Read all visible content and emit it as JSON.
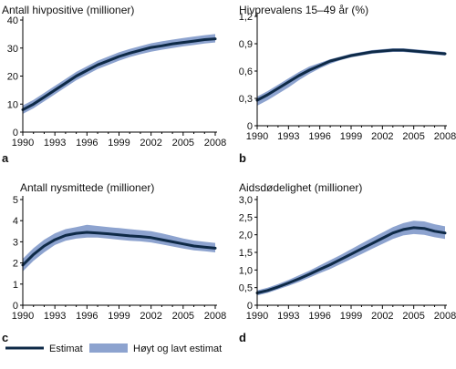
{
  "chart_data": [
    {
      "type": "line",
      "letter": "a",
      "title": "Antall hivpositive (millioner)",
      "x": [
        1990,
        1991,
        1992,
        1993,
        1994,
        1995,
        1996,
        1997,
        1998,
        1999,
        2000,
        2001,
        2002,
        2003,
        2004,
        2005,
        2006,
        2007,
        2008
      ],
      "x_ticks": [
        1990,
        1993,
        1996,
        1999,
        2002,
        2005,
        2008
      ],
      "ylim": [
        0,
        40
      ],
      "y_ticks": [
        "0",
        "10",
        "20",
        "30",
        "40"
      ],
      "y_tick_values": [
        0,
        10,
        20,
        30,
        40
      ],
      "series": [
        {
          "name": "Estimat",
          "values": [
            8,
            10,
            12.5,
            15,
            17.5,
            20,
            22,
            24,
            25.5,
            27,
            28.2,
            29.2,
            30.2,
            30.8,
            31.5,
            32,
            32.5,
            33,
            33.3
          ]
        },
        {
          "name": "Høyt og lavt estimat",
          "role": "band",
          "low": [
            6.5,
            8.5,
            11,
            13.5,
            16,
            18.5,
            20.5,
            22.5,
            24,
            25.5,
            26.8,
            27.8,
            28.7,
            29.4,
            30,
            30.6,
            31.1,
            31.6,
            32
          ],
          "high": [
            9.5,
            11.5,
            14,
            16.5,
            19,
            21.5,
            23.5,
            25.5,
            27,
            28.5,
            29.7,
            30.7,
            31.7,
            32.4,
            33,
            33.6,
            34.1,
            34.6,
            35
          ]
        }
      ]
    },
    {
      "type": "line",
      "letter": "b",
      "title": "Hivprevalens 15–49 år (%)",
      "x": [
        1990,
        1991,
        1992,
        1993,
        1994,
        1995,
        1996,
        1997,
        1998,
        1999,
        2000,
        2001,
        2002,
        2003,
        2004,
        2005,
        2006,
        2007,
        2008
      ],
      "x_ticks": [
        1990,
        1993,
        1996,
        1999,
        2002,
        2005,
        2008
      ],
      "ylim": [
        0,
        1.2
      ],
      "y_ticks": [
        "0",
        "0,3",
        "0,6",
        "0,9",
        "1,2"
      ],
      "y_tick_values": [
        0,
        0.3,
        0.6,
        0.9,
        1.2
      ],
      "series": [
        {
          "name": "Estimat",
          "values": [
            0.28,
            0.34,
            0.41,
            0.48,
            0.55,
            0.61,
            0.66,
            0.71,
            0.74,
            0.77,
            0.79,
            0.81,
            0.82,
            0.83,
            0.83,
            0.82,
            0.81,
            0.8,
            0.79
          ]
        },
        {
          "name": "Høyt og lavt estimat",
          "role": "band",
          "low": [
            0.22,
            0.28,
            0.35,
            0.42,
            0.5,
            0.57,
            0.63,
            0.68,
            0.72,
            0.75,
            0.77,
            0.79,
            0.8,
            0.81,
            0.81,
            0.8,
            0.79,
            0.78,
            0.77
          ],
          "high": [
            0.32,
            0.38,
            0.45,
            0.52,
            0.59,
            0.65,
            0.69,
            0.73,
            0.76,
            0.79,
            0.81,
            0.83,
            0.84,
            0.85,
            0.85,
            0.84,
            0.83,
            0.82,
            0.81
          ]
        }
      ]
    },
    {
      "type": "line",
      "letter": "c",
      "title": "Antall nysmittede (millioner)",
      "x": [
        1990,
        1991,
        1992,
        1993,
        1994,
        1995,
        1996,
        1997,
        1998,
        1999,
        2000,
        2001,
        2002,
        2003,
        2004,
        2005,
        2006,
        2007,
        2008
      ],
      "x_ticks": [
        1990,
        1993,
        1996,
        1999,
        2002,
        2005,
        2008
      ],
      "ylim": [
        0,
        5
      ],
      "y_ticks": [
        "0",
        "1",
        "2",
        "3",
        "4",
        "5"
      ],
      "y_tick_values": [
        0,
        1,
        2,
        3,
        4,
        5
      ],
      "series": [
        {
          "name": "Estimat",
          "values": [
            1.9,
            2.4,
            2.8,
            3.1,
            3.3,
            3.4,
            3.45,
            3.42,
            3.38,
            3.33,
            3.28,
            3.25,
            3.2,
            3.1,
            3.0,
            2.9,
            2.8,
            2.75,
            2.7
          ]
        },
        {
          "name": "Høyt og lavt estimat",
          "role": "band",
          "low": [
            1.6,
            2.1,
            2.5,
            2.85,
            3.05,
            3.15,
            3.2,
            3.2,
            3.15,
            3.1,
            3.05,
            3.02,
            2.97,
            2.88,
            2.78,
            2.68,
            2.6,
            2.55,
            2.5
          ],
          "high": [
            2.2,
            2.7,
            3.1,
            3.4,
            3.6,
            3.7,
            3.8,
            3.75,
            3.7,
            3.65,
            3.6,
            3.55,
            3.5,
            3.4,
            3.28,
            3.16,
            3.06,
            3.0,
            2.95
          ]
        }
      ]
    },
    {
      "type": "line",
      "letter": "d",
      "title": "Aidsdødelighet (millioner)",
      "x": [
        1990,
        1991,
        1992,
        1993,
        1994,
        1995,
        1996,
        1997,
        1998,
        1999,
        2000,
        2001,
        2002,
        2003,
        2004,
        2005,
        2006,
        2007,
        2008
      ],
      "x_ticks": [
        1990,
        1993,
        1996,
        1999,
        2002,
        2005,
        2008
      ],
      "ylim": [
        0,
        3
      ],
      "y_ticks": [
        "0",
        "0,5",
        "1,0",
        "1,5",
        "2,0",
        "2,5",
        "3,0"
      ],
      "y_tick_values": [
        0,
        0.5,
        1.0,
        1.5,
        2.0,
        2.5,
        3.0
      ],
      "series": [
        {
          "name": "Estimat",
          "values": [
            0.35,
            0.42,
            0.52,
            0.63,
            0.75,
            0.88,
            1.02,
            1.15,
            1.3,
            1.45,
            1.6,
            1.75,
            1.9,
            2.05,
            2.15,
            2.2,
            2.18,
            2.1,
            2.05
          ]
        },
        {
          "name": "Høyt og lavt estimat",
          "role": "band",
          "low": [
            0.28,
            0.35,
            0.45,
            0.55,
            0.66,
            0.78,
            0.91,
            1.03,
            1.17,
            1.31,
            1.45,
            1.6,
            1.74,
            1.88,
            1.98,
            2.02,
            2.0,
            1.93,
            1.88
          ],
          "high": [
            0.42,
            0.5,
            0.6,
            0.72,
            0.85,
            0.98,
            1.13,
            1.28,
            1.43,
            1.59,
            1.75,
            1.91,
            2.06,
            2.22,
            2.33,
            2.4,
            2.38,
            2.3,
            2.24
          ]
        }
      ]
    }
  ],
  "legend": {
    "line_label": "Estimat",
    "band_label": "Høyt og lavt estimat"
  },
  "colors": {
    "line": "#0e2a47",
    "band": "#8da3cf",
    "axis": "#000000"
  }
}
